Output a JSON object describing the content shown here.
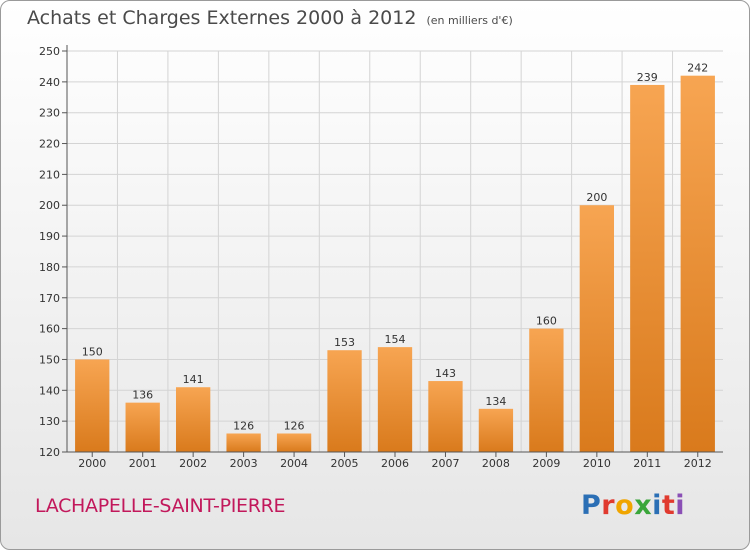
{
  "title": "Achats et Charges Externes 2000 à 2012",
  "subtitle": "(en milliers d'€)",
  "commune": "LACHAPELLE-SAINT-PIERRE",
  "logo": {
    "chars": [
      "P",
      "r",
      "o",
      "x",
      "i",
      "t",
      "i"
    ]
  },
  "colors": {
    "bar_light": "#f7a552",
    "bar_dark": "#d97a1c",
    "grid": "#d4d4d4",
    "axis": "#555555",
    "text": "#333333",
    "commune": "#c2185b"
  },
  "chart_data": {
    "type": "bar",
    "categories": [
      "2000",
      "2001",
      "2002",
      "2003",
      "2004",
      "2005",
      "2006",
      "2007",
      "2008",
      "2009",
      "2010",
      "2011",
      "2012"
    ],
    "values": [
      150,
      136,
      141,
      126,
      126,
      153,
      154,
      143,
      134,
      160,
      200,
      239,
      242
    ],
    "title": "Achats et Charges Externes 2000 à 2012",
    "subtitle": "(en milliers d'€)",
    "ylim": [
      120,
      250
    ],
    "yticks": [
      120,
      130,
      140,
      150,
      160,
      170,
      180,
      190,
      200,
      210,
      220,
      230,
      240,
      250
    ],
    "grid": true,
    "data_labels": true
  }
}
